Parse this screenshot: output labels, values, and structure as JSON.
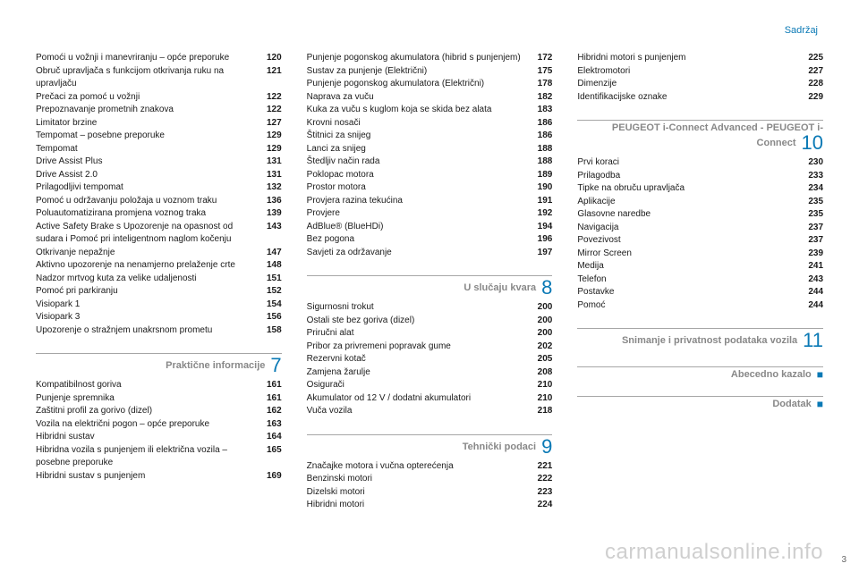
{
  "header": "Sadržaj",
  "columns": [
    [
      {
        "label": "Pomoći u vožnji i manevriranju – opće preporuke",
        "page": 120
      },
      {
        "label": "Obruč upravljača s funkcijom otkrivanja ruku na upravljaču",
        "page": 121
      },
      {
        "label": "Prečaci za pomoć u vožnji",
        "page": 122
      },
      {
        "label": "Prepoznavanje prometnih znakova",
        "page": 122
      },
      {
        "label": "Limitator brzine",
        "page": 127
      },
      {
        "label": "Tempomat – posebne preporuke",
        "page": 129
      },
      {
        "label": "Tempomat",
        "page": 129
      },
      {
        "label": "Drive Assist Plus",
        "page": 131
      },
      {
        "label": "Drive Assist 2.0",
        "page": 131
      },
      {
        "label": "Prilagodljivi tempomat",
        "page": 132
      },
      {
        "label": "Pomoć u održavanju položaja u voznom traku",
        "page": 136
      },
      {
        "label": "Poluautomatizirana promjena voznog traka",
        "page": 139
      },
      {
        "label": "Active Safety Brake s Upozorenje na opasnost od sudara i Pomoć pri inteligentnom naglom kočenju",
        "page": 143
      },
      {
        "label": "Otkrivanje nepažnje",
        "page": 147
      },
      {
        "label": "Aktivno upozorenje na nenamjerno prelaženje crte",
        "page": 148
      },
      {
        "label": "Nadzor mrtvog kuta za velike udaljenosti",
        "page": 151
      },
      {
        "label": "Pomoć pri parkiranju",
        "page": 152
      },
      {
        "label": "Visiopark 1",
        "page": 154
      },
      {
        "label": "Visiopark 3",
        "page": 156
      },
      {
        "label": "Upozorenje o stražnjem unakrsnom prometu",
        "page": 158
      },
      {
        "section": "Praktične informacije",
        "num": "7"
      },
      {
        "label": "Kompatibilnost goriva",
        "page": 161
      },
      {
        "label": "Punjenje spremnika",
        "page": 161
      },
      {
        "label": "Zaštitni profil za gorivo (dizel)",
        "page": 162
      },
      {
        "label": "Vozila na električni pogon – opće preporuke",
        "page": 163
      },
      {
        "label": "Hibridni sustav",
        "page": 164
      },
      {
        "label": "Hibridna vozila s punjenjem ili električna vozila – posebne preporuke",
        "page": 165
      },
      {
        "label": "Hibridni sustav s punjenjem",
        "page": 169
      }
    ],
    [
      {
        "label": "Punjenje pogonskog akumulatora (hibrid s punjenjem)",
        "page": 172
      },
      {
        "label": "Sustav za punjenje (Električni)",
        "page": 175
      },
      {
        "label": "Punjenje pogonskog akumulatora (Električni)",
        "page": 178
      },
      {
        "label": "Naprava za vuču",
        "page": 182
      },
      {
        "label": "Kuka za vuču s kuglom koja se skida bez alata",
        "page": 183
      },
      {
        "label": "Krovni nosači",
        "page": 186
      },
      {
        "label": "Štitnici za snijeg",
        "page": 186
      },
      {
        "label": "Lanci za snijeg",
        "page": 188
      },
      {
        "label": "Štedljiv način rada",
        "page": 188
      },
      {
        "label": "Poklopac motora",
        "page": 189
      },
      {
        "label": "Prostor motora",
        "page": 190
      },
      {
        "label": "Provjera razina tekućina",
        "page": 191
      },
      {
        "label": "Provjere",
        "page": 192
      },
      {
        "label": "AdBlue® (BlueHDi)",
        "page": 194
      },
      {
        "label": "Bez pogona",
        "page": 196
      },
      {
        "label": "Savjeti za održavanje",
        "page": 197
      },
      {
        "section": "U slučaju kvara",
        "num": "8"
      },
      {
        "label": "Sigurnosni trokut",
        "page": 200
      },
      {
        "label": "Ostali ste bez goriva (dizel)",
        "page": 200
      },
      {
        "label": "Priručni alat",
        "page": 200
      },
      {
        "label": "Pribor za privremeni popravak gume",
        "page": 202
      },
      {
        "label": "Rezervni kotač",
        "page": 205
      },
      {
        "label": "Zamjena žarulje",
        "page": 208
      },
      {
        "label": "Osigurači",
        "page": 210
      },
      {
        "label": "Akumulator od 12 V / dodatni akumulatori",
        "page": 210
      },
      {
        "label": "Vuča vozila",
        "page": 218
      },
      {
        "section": "Tehnički podaci",
        "num": "9"
      },
      {
        "label": "Značajke motora i vučna opterećenja",
        "page": 221
      },
      {
        "label": "Benzinski motori",
        "page": 222
      },
      {
        "label": "Dizelski motori",
        "page": 223
      },
      {
        "label": "Hibridni motori",
        "page": 224
      }
    ],
    [
      {
        "label": "Hibridni motori s punjenjem",
        "page": 225
      },
      {
        "label": "Elektromotori",
        "page": 227
      },
      {
        "label": "Dimenzije",
        "page": 228
      },
      {
        "label": "Identifikacijske oznake",
        "page": 229
      },
      {
        "section": "PEUGEOT i-Connect Advanced - PEUGEOT i-Connect",
        "num": "10"
      },
      {
        "label": "Prvi koraci",
        "page": 230
      },
      {
        "label": "Prilagodba",
        "page": 233
      },
      {
        "label": "Tipke na obruču upravljača",
        "page": 234
      },
      {
        "label": "Aplikacije",
        "page": 235
      },
      {
        "label": "Glasovne naredbe",
        "page": 235
      },
      {
        "label": "Navigacija",
        "page": 237
      },
      {
        "label": "Povezivost",
        "page": 237
      },
      {
        "label": "Mirror Screen",
        "page": 239
      },
      {
        "label": "Medija",
        "page": 241
      },
      {
        "label": "Telefon",
        "page": 243
      },
      {
        "label": "Postavke",
        "page": 244
      },
      {
        "label": "Pomoć",
        "page": 244
      },
      {
        "section": "Snimanje i privatnost podataka vozila",
        "num": "11"
      },
      {
        "section": "Abecedno kazalo",
        "sq": "■"
      },
      {
        "section": "Dodatak",
        "sq": "■"
      }
    ]
  ],
  "watermark": "carmanualsonline.info",
  "pagenum": "3",
  "colors": {
    "accent": "#0a79b5",
    "muted": "#888888",
    "rule": "#a6a6a6",
    "watermark": "#cfcfcf"
  },
  "fontsizes": {
    "body": 10,
    "header": 11,
    "section_title": 11,
    "section_num": 22,
    "watermark": 24
  }
}
